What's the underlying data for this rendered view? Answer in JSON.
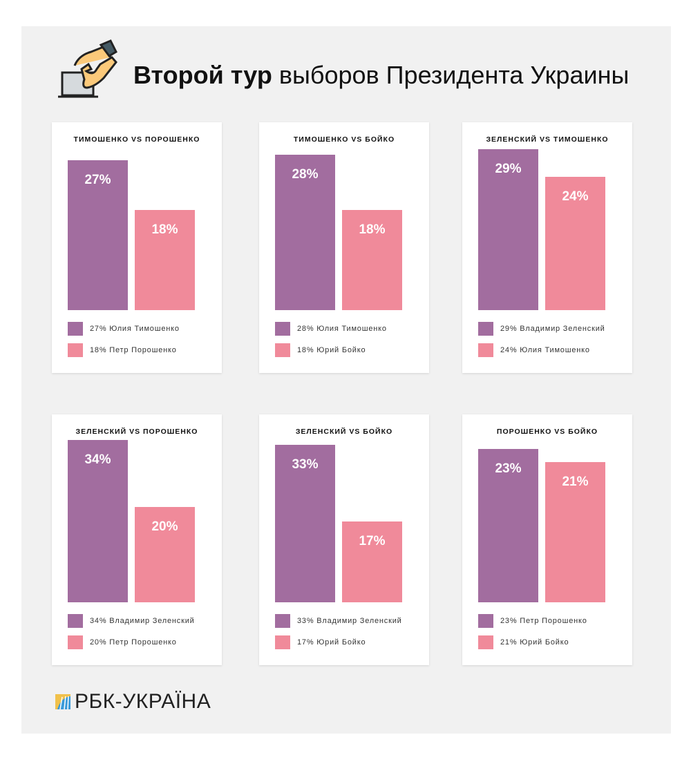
{
  "title": {
    "bold": "Второй тур",
    "rest": " выборов Президента Украины"
  },
  "logo": "РБК-УКРАЇНА",
  "colors": {
    "first": "#a26d9f",
    "second": "#f08a9a"
  },
  "chart_data": [
    {
      "type": "bar",
      "title": "ТИМОШЕНКО VS ПОРОШЕНКО",
      "categories": [
        "Юлия Тимошенко",
        "Петр Порошенко"
      ],
      "values": [
        27,
        18
      ],
      "labels": [
        "27%",
        "18%"
      ],
      "legend": [
        "27% Юлия Тимошенко",
        "18% Петр Порошенко"
      ]
    },
    {
      "type": "bar",
      "title": "ТИМОШЕНКО VS БОЙКО",
      "categories": [
        "Юлия Тимошенко",
        "Юрий Бойко"
      ],
      "values": [
        28,
        18
      ],
      "labels": [
        "28%",
        "18%"
      ],
      "legend": [
        "28% Юлия Тимошенко",
        "18% Юрий Бойко"
      ]
    },
    {
      "type": "bar",
      "title": "ЗЕЛЕНСКИЙ VS ТИМОШЕНКО",
      "categories": [
        "Владимир Зеленский",
        "Юлия Тимошенко"
      ],
      "values": [
        29,
        24
      ],
      "labels": [
        "29%",
        "24%"
      ],
      "legend": [
        "29% Владимир Зеленский",
        "24% Юлия Тимошенко"
      ]
    },
    {
      "type": "bar",
      "title": "ЗЕЛЕНСКИЙ VS ПОРОШЕНКО",
      "categories": [
        "Владимир Зеленский",
        "Петр Порошенко"
      ],
      "values": [
        34,
        20
      ],
      "labels": [
        "34%",
        "20%"
      ],
      "legend": [
        "34% Владимир Зеленский",
        "20% Петр Порошенко"
      ]
    },
    {
      "type": "bar",
      "title": "ЗЕЛЕНСКИЙ VS БОЙКО",
      "categories": [
        "Владимир Зеленский",
        "Юрий Бойко"
      ],
      "values": [
        33,
        17
      ],
      "labels": [
        "33%",
        "17%"
      ],
      "legend": [
        "33% Владимир Зеленский",
        "17% Юрий Бойко"
      ]
    },
    {
      "type": "bar",
      "title": "ПОРОШЕНКО VS БОЙКО",
      "categories": [
        "Петр Порошенко",
        "Юрий Бойко"
      ],
      "values": [
        23,
        21
      ],
      "labels": [
        "23%",
        "21%"
      ],
      "legend": [
        "23% Петр Порошенко",
        "21% Юрий Бойко"
      ]
    }
  ]
}
